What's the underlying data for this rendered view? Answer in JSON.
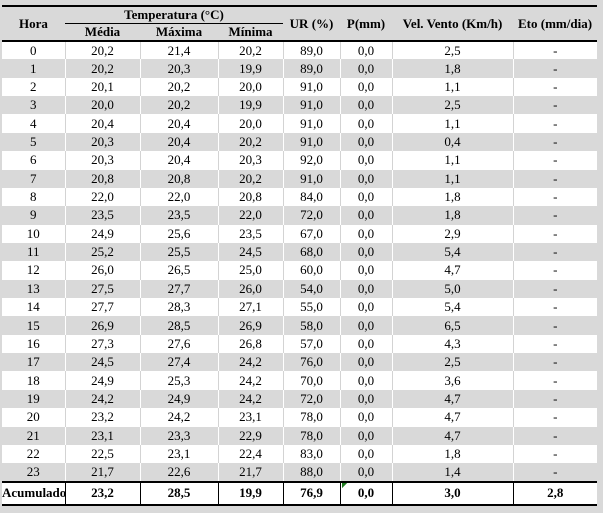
{
  "colors": {
    "background": "#d9d9d9",
    "row_alternate": "#d9d9d9",
    "row_plain": "#ffffff",
    "border": "#000000",
    "gridline_on_white": "#d3d3d3",
    "gridline_on_gray": "#ffffff",
    "flag_green": "#1e7b1e"
  },
  "icons": {
    "footer_p_cell_flag": "green-corner-triangle"
  },
  "chart_data": {
    "type": "table",
    "group_header": {
      "label": "Temperatura (°C)",
      "spans_columns": [
        "Média",
        "Máxima",
        "Mínima"
      ]
    },
    "columns": [
      "Hora",
      "Média",
      "Máxima",
      "Mínima",
      "UR (%)",
      "P(mm)",
      "Vel. Vento (Km/h)",
      "Eto (mm/dia)"
    ],
    "rows": [
      [
        "0",
        "20,2",
        "21,4",
        "20,2",
        "89,0",
        "0,0",
        "2,5",
        "-"
      ],
      [
        "1",
        "20,2",
        "20,3",
        "19,9",
        "89,0",
        "0,0",
        "1,8",
        "-"
      ],
      [
        "2",
        "20,1",
        "20,2",
        "20,0",
        "91,0",
        "0,0",
        "1,1",
        "-"
      ],
      [
        "3",
        "20,0",
        "20,2",
        "19,9",
        "91,0",
        "0,0",
        "2,5",
        "-"
      ],
      [
        "4",
        "20,4",
        "20,4",
        "20,0",
        "91,0",
        "0,0",
        "1,1",
        "-"
      ],
      [
        "5",
        "20,3",
        "20,4",
        "20,2",
        "91,0",
        "0,0",
        "0,4",
        "-"
      ],
      [
        "6",
        "20,3",
        "20,4",
        "20,3",
        "92,0",
        "0,0",
        "1,1",
        "-"
      ],
      [
        "7",
        "20,8",
        "20,8",
        "20,2",
        "91,0",
        "0,0",
        "1,1",
        "-"
      ],
      [
        "8",
        "22,0",
        "22,0",
        "20,8",
        "84,0",
        "0,0",
        "1,8",
        "-"
      ],
      [
        "9",
        "23,5",
        "23,5",
        "22,0",
        "72,0",
        "0,0",
        "1,8",
        "-"
      ],
      [
        "10",
        "24,9",
        "25,6",
        "23,5",
        "67,0",
        "0,0",
        "2,9",
        "-"
      ],
      [
        "11",
        "25,2",
        "25,5",
        "24,5",
        "68,0",
        "0,0",
        "5,4",
        "-"
      ],
      [
        "12",
        "26,0",
        "26,5",
        "25,0",
        "60,0",
        "0,0",
        "4,7",
        "-"
      ],
      [
        "13",
        "27,5",
        "27,7",
        "26,0",
        "54,0",
        "0,0",
        "5,0",
        "-"
      ],
      [
        "14",
        "27,7",
        "28,3",
        "27,1",
        "55,0",
        "0,0",
        "5,4",
        "-"
      ],
      [
        "15",
        "26,9",
        "28,5",
        "26,9",
        "58,0",
        "0,0",
        "6,5",
        "-"
      ],
      [
        "16",
        "27,3",
        "27,6",
        "26,8",
        "57,0",
        "0,0",
        "4,3",
        "-"
      ],
      [
        "17",
        "24,5",
        "27,4",
        "24,2",
        "76,0",
        "0,0",
        "2,5",
        "-"
      ],
      [
        "18",
        "24,9",
        "25,3",
        "24,2",
        "70,0",
        "0,0",
        "3,6",
        "-"
      ],
      [
        "19",
        "24,2",
        "24,9",
        "24,2",
        "72,0",
        "0,0",
        "4,7",
        "-"
      ],
      [
        "20",
        "23,2",
        "24,2",
        "23,1",
        "78,0",
        "0,0",
        "4,7",
        "-"
      ],
      [
        "21",
        "23,1",
        "23,3",
        "22,9",
        "78,0",
        "0,0",
        "4,7",
        "-"
      ],
      [
        "22",
        "22,5",
        "23,1",
        "22,4",
        "83,0",
        "0,0",
        "1,8",
        "-"
      ],
      [
        "23",
        "21,7",
        "22,6",
        "21,7",
        "88,0",
        "0,0",
        "1,4",
        "-"
      ]
    ],
    "footer_row": [
      "Acumulado",
      "23,2",
      "28,5",
      "19,9",
      "76,9",
      "0,0",
      "3,0",
      "2,8"
    ]
  }
}
